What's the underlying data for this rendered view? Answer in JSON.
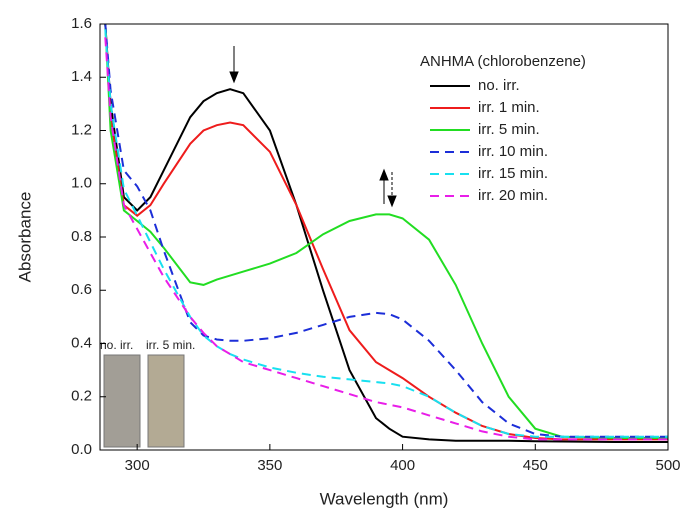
{
  "chart_data": {
    "type": "line",
    "xlabel": "Wavelength (nm)",
    "ylabel": "Absorbance",
    "legend_title": "ANHMA (chlorobenzene)",
    "legend": "upper right",
    "annotations": [
      "no. irr.",
      "irr. 5 min."
    ],
    "x": [
      288,
      290,
      295,
      300,
      305,
      310,
      320,
      325,
      330,
      335,
      340,
      350,
      360,
      370,
      380,
      390,
      395,
      400,
      410,
      420,
      430,
      440,
      450,
      460,
      480,
      500
    ],
    "series": [
      {
        "name": "no. irr.",
        "color": "#000000",
        "style": "solid",
        "values": [
          1.6,
          1.3,
          0.95,
          0.9,
          0.95,
          1.05,
          1.25,
          1.31,
          1.34,
          1.355,
          1.34,
          1.2,
          0.92,
          0.6,
          0.3,
          0.12,
          0.08,
          0.05,
          0.04,
          0.035,
          0.035,
          0.035,
          0.033,
          0.032,
          0.03,
          0.03
        ]
      },
      {
        "name": "irr. 1 min.",
        "color": "#ee1c1c",
        "style": "solid",
        "values": [
          1.6,
          1.25,
          0.92,
          0.88,
          0.92,
          1.0,
          1.15,
          1.2,
          1.22,
          1.23,
          1.22,
          1.12,
          0.92,
          0.68,
          0.45,
          0.33,
          0.3,
          0.27,
          0.2,
          0.14,
          0.09,
          0.06,
          0.045,
          0.04,
          0.04,
          0.04
        ]
      },
      {
        "name": "irr. 5 min.",
        "color": "#22dd22",
        "style": "solid",
        "values": [
          1.6,
          1.2,
          0.9,
          0.86,
          0.82,
          0.76,
          0.63,
          0.62,
          0.64,
          0.655,
          0.67,
          0.7,
          0.74,
          0.81,
          0.86,
          0.885,
          0.885,
          0.87,
          0.79,
          0.62,
          0.4,
          0.2,
          0.08,
          0.05,
          0.045,
          0.045
        ]
      },
      {
        "name": "irr. 10 min.",
        "color": "#1c2ed8",
        "style": "dashed",
        "values": [
          1.6,
          1.35,
          1.05,
          0.99,
          0.9,
          0.75,
          0.48,
          0.43,
          0.415,
          0.41,
          0.41,
          0.42,
          0.44,
          0.47,
          0.5,
          0.515,
          0.51,
          0.49,
          0.41,
          0.3,
          0.18,
          0.1,
          0.06,
          0.05,
          0.05,
          0.05
        ]
      },
      {
        "name": "irr. 15 min.",
        "color": "#18e0f0",
        "style": "dashed",
        "values": [
          1.58,
          1.3,
          0.98,
          0.88,
          0.78,
          0.68,
          0.5,
          0.43,
          0.39,
          0.36,
          0.34,
          0.31,
          0.29,
          0.275,
          0.265,
          0.255,
          0.25,
          0.24,
          0.2,
          0.14,
          0.09,
          0.06,
          0.05,
          0.05,
          0.05,
          0.05
        ]
      },
      {
        "name": "irr. 20 min.",
        "color": "#e81ee8",
        "style": "dashed",
        "values": [
          1.55,
          1.25,
          0.92,
          0.83,
          0.74,
          0.65,
          0.5,
          0.44,
          0.39,
          0.36,
          0.33,
          0.3,
          0.27,
          0.24,
          0.21,
          0.18,
          0.17,
          0.16,
          0.13,
          0.1,
          0.07,
          0.05,
          0.04,
          0.04,
          0.04,
          0.04
        ]
      }
    ],
    "xlim": [
      286,
      500
    ],
    "xticks": [
      300,
      350,
      400,
      450,
      500
    ],
    "ylim": [
      0,
      1.6
    ],
    "yticks": [
      {
        "value": 0,
        "label": "0.0"
      },
      0.2,
      0.4,
      0.6,
      0.8,
      {
        "value": 1,
        "label": "1.0"
      },
      1.2,
      1.4,
      1.6
    ]
  }
}
